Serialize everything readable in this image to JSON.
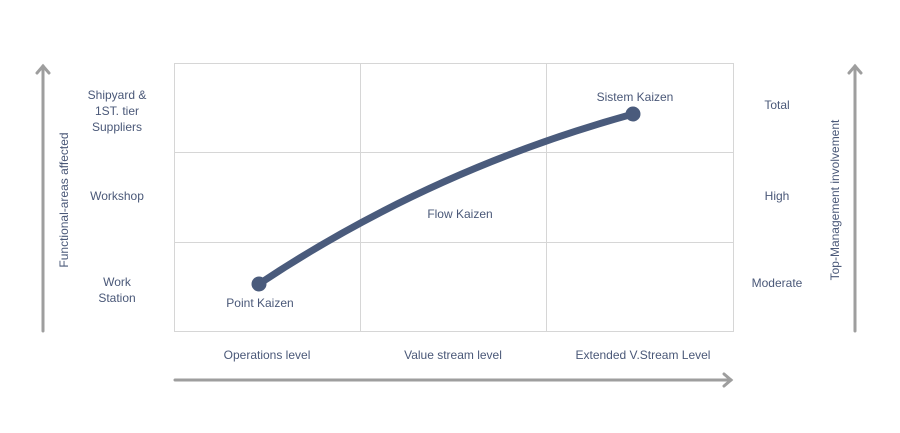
{
  "axes": {
    "left_title": "Functional-areas affected",
    "right_title": "Top-Management involvement",
    "left_levels": [
      "Work\nStation",
      "Workshop",
      "Shipyard &\n1ST. tier\nSuppliers"
    ],
    "right_levels": [
      "Moderate",
      "High",
      "Total"
    ],
    "bottom_levels": [
      "Operations level",
      "Value stream level",
      "Extended V.Stream Level"
    ]
  },
  "points": {
    "start": "Point Kaizen",
    "middle": "Flow Kaizen",
    "end": "Sistem Kaizen"
  },
  "colors": {
    "curve": "#4a5b7c",
    "arrow": "#9e9e9e",
    "grid": "#d6d6d6",
    "text": "#4a5878"
  }
}
